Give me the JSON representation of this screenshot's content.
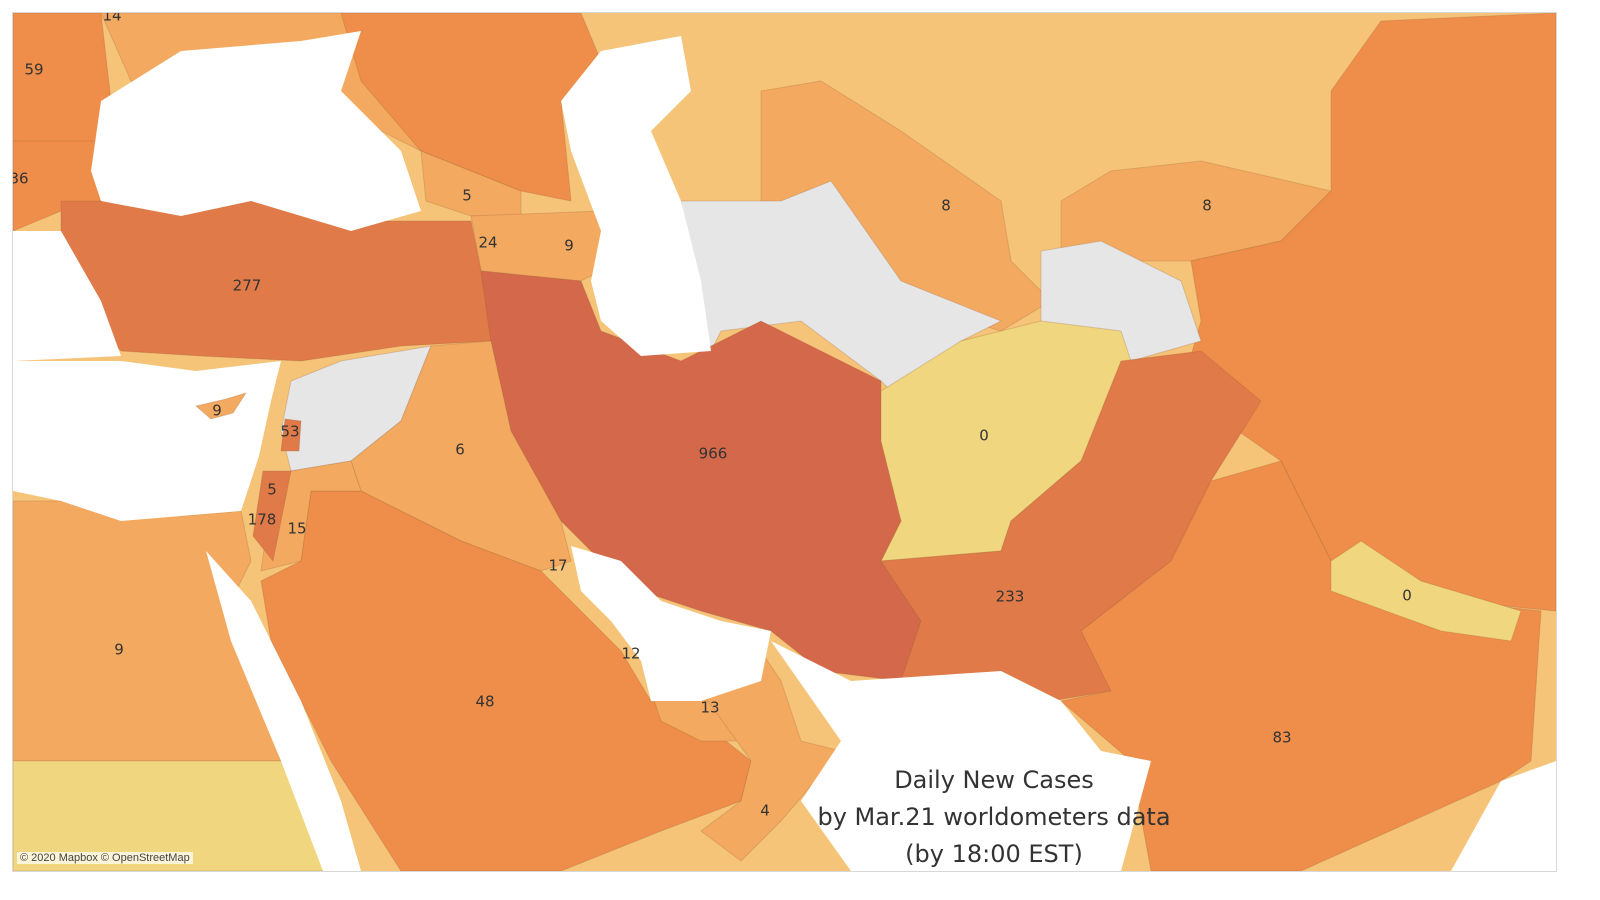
{
  "map": {
    "title_lines": [
      "Daily New Cases",
      "by Mar.21 worldometers data",
      "(by 18:00 EST)"
    ],
    "attribution": "© 2020 Mapbox © OpenStreetMap",
    "colors": {
      "water": "#ffffff",
      "no_data": "#e6e6e6",
      "lowest": "#f0d67e",
      "low": "#f5c478",
      "mid_low": "#f3aa60",
      "mid": "#ef8e4a",
      "high": "#e07a48",
      "highest": "#d4684a"
    },
    "labels": [
      "14",
      "59",
      "36",
      "5",
      "24",
      "9",
      "277",
      "8",
      "8",
      "9",
      "53",
      "6",
      "966",
      "0",
      "5",
      "178",
      "15",
      "17",
      "233",
      "0",
      "9",
      "12",
      "48",
      "13",
      "83",
      "4"
    ]
  }
}
